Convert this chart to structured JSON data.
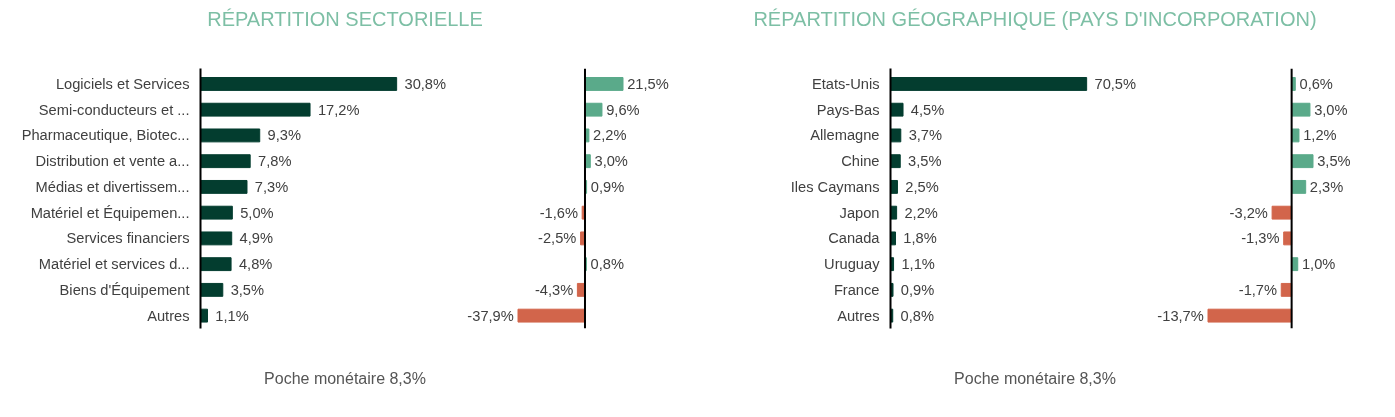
{
  "chart_data": [
    {
      "type": "bar",
      "orientation": "horizontal",
      "title": "RÉPARTITION SECTORIELLE",
      "annotations": [
        "Poche monétaire 8,3%"
      ],
      "categories": [
        "Logiciels et Services",
        "Semi-conducteurs et ...",
        "Pharmaceutique, Biotec...",
        "Distribution et vente a...",
        "Médias et divertissem...",
        "Matériel et Équipemen...",
        "Services financiers",
        "Matériel et services d...",
        "Biens d'Équipement",
        "Autres"
      ],
      "values": [
        30.8,
        17.2,
        9.3,
        7.8,
        7.3,
        5.0,
        4.9,
        4.8,
        3.5,
        1.1
      ],
      "colors": [
        "#033d2f",
        "#033d2f",
        "#033d2f",
        "#033d2f",
        "#033d2f",
        "#033d2f",
        "#033d2f",
        "#033d2f",
        "#033d2f",
        "#033d2f"
      ],
      "value_labels": [
        "30,8%",
        "17,2%",
        "9,3%",
        "7,8%",
        "7,3%",
        "5,0%",
        "4,9%",
        "4,8%",
        "3,5%",
        "1,1%"
      ]
    },
    {
      "type": "bar",
      "orientation": "horizontal",
      "tick_labels": false,
      "categories": [
        null,
        null,
        null,
        null,
        null,
        null,
        null,
        null,
        null,
        null
      ],
      "values": [
        21.5,
        9.6,
        2.2,
        3.0,
        0.9,
        -1.6,
        -2.5,
        0.8,
        -4.3,
        -37.9
      ],
      "colors": [
        "#5aaa8a",
        "#5aaa8a",
        "#5aaa8a",
        "#5aaa8a",
        "#5aaa8a",
        "#d2654b",
        "#d2654b",
        "#5aaa8a",
        "#d2654b",
        "#d2654b"
      ],
      "value_labels": [
        "21,5%",
        "9,6%",
        "2,2%",
        "3,0%",
        "0,9%",
        "-1,6%",
        "-2,5%",
        "0,8%",
        "-4,3%",
        "-37,9%"
      ]
    },
    {
      "type": "bar",
      "orientation": "horizontal",
      "title": "RÉPARTITION GÉOGRAPHIQUE (PAYS D'INCORPORATION)",
      "annotations": [
        "Poche monétaire 8,3%"
      ],
      "categories": [
        "Etats-Unis",
        "Pays-Bas",
        "Allemagne",
        "Chine",
        "Iles Caymans",
        "Japon",
        "Canada",
        "Uruguay",
        "France",
        "Autres"
      ],
      "values": [
        70.5,
        4.5,
        3.7,
        3.5,
        2.5,
        2.2,
        1.8,
        1.1,
        0.9,
        0.8
      ],
      "colors": [
        "#033d2f",
        "#033d2f",
        "#033d2f",
        "#033d2f",
        "#033d2f",
        "#033d2f",
        "#033d2f",
        "#033d2f",
        "#033d2f",
        "#033d2f"
      ],
      "value_labels": [
        "70,5%",
        "4,5%",
        "3,7%",
        "3,5%",
        "2,5%",
        "2,2%",
        "1,8%",
        "1,1%",
        "0,9%",
        "0,8%"
      ]
    },
    {
      "type": "bar",
      "orientation": "horizontal",
      "tick_labels": false,
      "categories": [
        null,
        null,
        null,
        null,
        null,
        null,
        null,
        null,
        null,
        null
      ],
      "values": [
        0.6,
        3.0,
        1.2,
        3.5,
        2.3,
        -3.2,
        -1.3,
        1.0,
        -1.7,
        -13.7
      ],
      "colors": [
        "#5aaa8a",
        "#5aaa8a",
        "#5aaa8a",
        "#5aaa8a",
        "#5aaa8a",
        "#d2654b",
        "#d2654b",
        "#5aaa8a",
        "#d2654b",
        "#d2654b"
      ],
      "value_labels": [
        "0,6%",
        "3,0%",
        "1,2%",
        "3,5%",
        "2,3%",
        "-3,2%",
        "-1,3%",
        "1,0%",
        "-1,7%",
        "-13,7%"
      ]
    }
  ]
}
